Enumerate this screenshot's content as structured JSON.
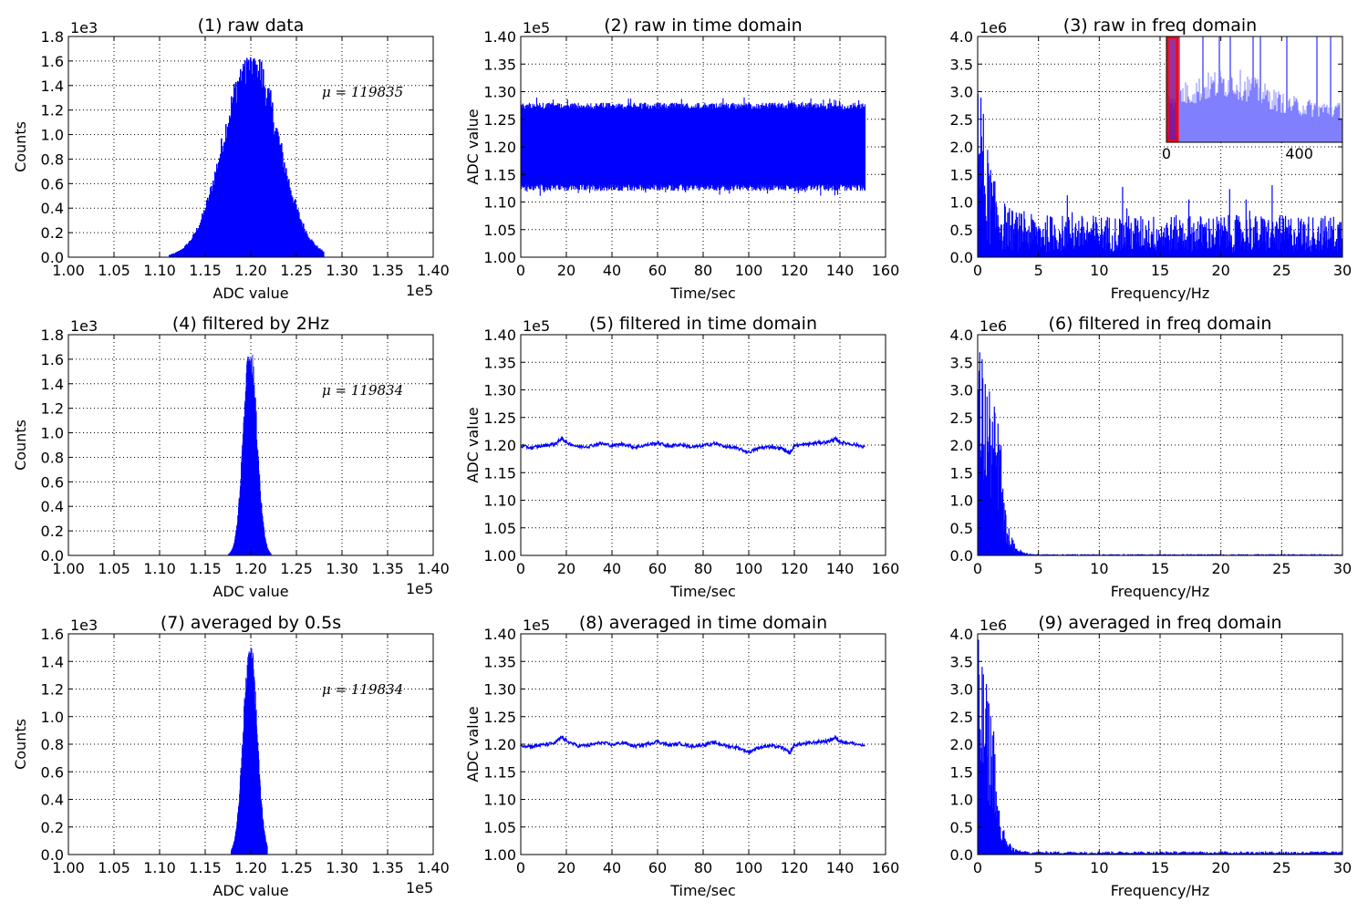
{
  "colors": {
    "series": "#0000ff",
    "inset_fill": "#8080ff",
    "highlight": "#ff0000"
  },
  "chart_data": [
    {
      "type": "bar",
      "kind": "histogram",
      "title": "(1) raw data",
      "xlabel": "ADC value",
      "ylabel": "Counts",
      "x_offset_label": "1e5",
      "y_offset_label": "1e3",
      "xlim": [
        1.0,
        1.4
      ],
      "ylim": [
        0.0,
        1.8
      ],
      "xticks": [
        "1.00",
        "1.05",
        "1.10",
        "1.15",
        "1.20",
        "1.25",
        "1.30",
        "1.35",
        "1.40"
      ],
      "yticks": [
        "0.0",
        "0.2",
        "0.4",
        "0.6",
        "0.8",
        "1.0",
        "1.2",
        "1.4",
        "1.6",
        "1.8"
      ],
      "annotation": "μ = 119835",
      "shape": {
        "center": 1.2,
        "sigma": 0.03,
        "peak": 1.63,
        "min": 1.11,
        "max": 1.28
      },
      "grid": true
    },
    {
      "type": "line",
      "title": "(2) raw in time domain",
      "xlabel": "Time/sec",
      "ylabel": "ADC value",
      "y_offset_label": "1e5",
      "xlim": [
        0,
        160
      ],
      "ylim": [
        1.0,
        1.4
      ],
      "xticks": [
        "0",
        "20",
        "40",
        "60",
        "80",
        "100",
        "120",
        "140",
        "160"
      ],
      "yticks": [
        "1.00",
        "1.05",
        "1.10",
        "1.15",
        "1.20",
        "1.25",
        "1.30",
        "1.35",
        "1.40"
      ],
      "band": {
        "x": [
          0,
          151
        ],
        "lower": 1.12,
        "upper": 1.28,
        "mean": 1.2
      },
      "grid": true
    },
    {
      "type": "line",
      "kind": "spectrum",
      "title": "(3) raw in freq domain",
      "xlabel": "Frequency/Hz",
      "y_offset_label": "1e6",
      "xlim": [
        0,
        30
      ],
      "ylim": [
        0.0,
        4.0
      ],
      "xticks": [
        "0",
        "5",
        "10",
        "15",
        "20",
        "25",
        "30"
      ],
      "yticks": [
        "0.0",
        "0.5",
        "1.0",
        "1.5",
        "2.0",
        "2.5",
        "3.0",
        "3.5",
        "4.0"
      ],
      "envelope": {
        "start": 4.0,
        "decay_to": 0.9,
        "noise_max": 1.6
      },
      "inset": {
        "xticks": [
          "0",
          "400"
        ],
        "xlim": [
          0,
          530
        ],
        "highlight_range": [
          0,
          30
        ]
      },
      "grid": true
    },
    {
      "type": "bar",
      "kind": "histogram",
      "title": "(4) filtered by 2Hz",
      "xlabel": "ADC value",
      "ylabel": "Counts",
      "x_offset_label": "1e5",
      "y_offset_label": "1e3",
      "xlim": [
        1.0,
        1.4
      ],
      "ylim": [
        0.0,
        1.8
      ],
      "xticks": [
        "1.00",
        "1.05",
        "1.10",
        "1.15",
        "1.20",
        "1.25",
        "1.30",
        "1.35",
        "1.40"
      ],
      "yticks": [
        "0.0",
        "0.2",
        "0.4",
        "0.6",
        "0.8",
        "1.0",
        "1.2",
        "1.4",
        "1.6",
        "1.8"
      ],
      "annotation": "μ = 119834",
      "shape": {
        "center": 1.199,
        "sigma": 0.0075,
        "peak": 1.65,
        "min": 1.175,
        "max": 1.222
      },
      "grid": true
    },
    {
      "type": "line",
      "title": "(5) filtered in time domain",
      "xlabel": "Time/sec",
      "ylabel": "ADC value",
      "y_offset_label": "1e5",
      "xlim": [
        0,
        160
      ],
      "ylim": [
        1.0,
        1.4
      ],
      "xticks": [
        "0",
        "20",
        "40",
        "60",
        "80",
        "100",
        "120",
        "140",
        "160"
      ],
      "yticks": [
        "1.00",
        "1.05",
        "1.10",
        "1.15",
        "1.20",
        "1.25",
        "1.30",
        "1.35",
        "1.40"
      ],
      "x": [
        0,
        5,
        10,
        15,
        18,
        20,
        25,
        30,
        35,
        40,
        45,
        50,
        55,
        60,
        65,
        70,
        75,
        80,
        85,
        90,
        95,
        100,
        105,
        110,
        115,
        118,
        120,
        125,
        130,
        135,
        138,
        140,
        145,
        151
      ],
      "y": [
        1.198,
        1.195,
        1.199,
        1.202,
        1.212,
        1.205,
        1.197,
        1.198,
        1.203,
        1.199,
        1.202,
        1.196,
        1.2,
        1.204,
        1.198,
        1.201,
        1.196,
        1.199,
        1.203,
        1.197,
        1.194,
        1.187,
        1.195,
        1.197,
        1.193,
        1.185,
        1.199,
        1.201,
        1.204,
        1.206,
        1.211,
        1.205,
        1.202,
        1.197
      ],
      "grid": true
    },
    {
      "type": "line",
      "kind": "spectrum",
      "title": "(6) filtered in freq domain",
      "xlabel": "Frequency/Hz",
      "y_offset_label": "1e6",
      "xlim": [
        0,
        30
      ],
      "ylim": [
        0.0,
        4.0
      ],
      "xticks": [
        "0",
        "5",
        "10",
        "15",
        "20",
        "25",
        "30"
      ],
      "yticks": [
        "0.0",
        "0.5",
        "1.0",
        "1.5",
        "2.0",
        "2.5",
        "3.0",
        "3.5",
        "4.0"
      ],
      "envelope": {
        "start": 4.0,
        "cutoff_hz": 2.0,
        "after": 0.02
      },
      "grid": true
    },
    {
      "type": "bar",
      "kind": "histogram",
      "title": "(7) averaged by 0.5s",
      "xlabel": "ADC value",
      "ylabel": "Counts",
      "x_offset_label": "1e5",
      "y_offset_label": "1e3",
      "xlim": [
        1.0,
        1.4
      ],
      "ylim": [
        0.0,
        1.6
      ],
      "xticks": [
        "1.00",
        "1.05",
        "1.10",
        "1.15",
        "1.20",
        "1.25",
        "1.30",
        "1.35",
        "1.40"
      ],
      "yticks": [
        "0.0",
        "0.2",
        "0.4",
        "0.6",
        "0.8",
        "1.0",
        "1.2",
        "1.4",
        "1.6"
      ],
      "annotation": "μ = 119834",
      "shape": {
        "center": 1.199,
        "sigma": 0.0075,
        "peak": 1.5,
        "min": 1.178,
        "max": 1.218
      },
      "grid": true
    },
    {
      "type": "line",
      "title": "(8) averaged in time domain",
      "xlabel": "Time/sec",
      "ylabel": "ADC value",
      "y_offset_label": "1e5",
      "xlim": [
        0,
        160
      ],
      "ylim": [
        1.0,
        1.4
      ],
      "xticks": [
        "0",
        "20",
        "40",
        "60",
        "80",
        "100",
        "120",
        "140",
        "160"
      ],
      "yticks": [
        "1.00",
        "1.05",
        "1.10",
        "1.15",
        "1.20",
        "1.25",
        "1.30",
        "1.35",
        "1.40"
      ],
      "x": [
        0,
        5,
        10,
        15,
        18,
        20,
        25,
        30,
        35,
        40,
        45,
        50,
        55,
        60,
        65,
        70,
        75,
        80,
        85,
        90,
        95,
        100,
        105,
        110,
        115,
        118,
        120,
        125,
        130,
        135,
        138,
        140,
        145,
        151
      ],
      "y": [
        1.198,
        1.196,
        1.199,
        1.202,
        1.213,
        1.206,
        1.197,
        1.198,
        1.203,
        1.199,
        1.203,
        1.196,
        1.2,
        1.205,
        1.198,
        1.201,
        1.196,
        1.199,
        1.203,
        1.197,
        1.194,
        1.186,
        1.195,
        1.197,
        1.193,
        1.184,
        1.199,
        1.201,
        1.204,
        1.206,
        1.212,
        1.205,
        1.202,
        1.197
      ],
      "grid": true
    },
    {
      "type": "line",
      "kind": "spectrum",
      "title": "(9) averaged in freq domain",
      "xlabel": "Frequency/Hz",
      "y_offset_label": "1e6",
      "xlim": [
        0,
        30
      ],
      "ylim": [
        0.0,
        4.0
      ],
      "xticks": [
        "0",
        "5",
        "10",
        "15",
        "20",
        "25",
        "30"
      ],
      "yticks": [
        "0.0",
        "0.5",
        "1.0",
        "1.5",
        "2.0",
        "2.5",
        "3.0",
        "3.5",
        "4.0"
      ],
      "envelope": {
        "start": 4.0,
        "cutoff_hz": 1.5,
        "after": 0.05
      },
      "grid": true
    }
  ]
}
